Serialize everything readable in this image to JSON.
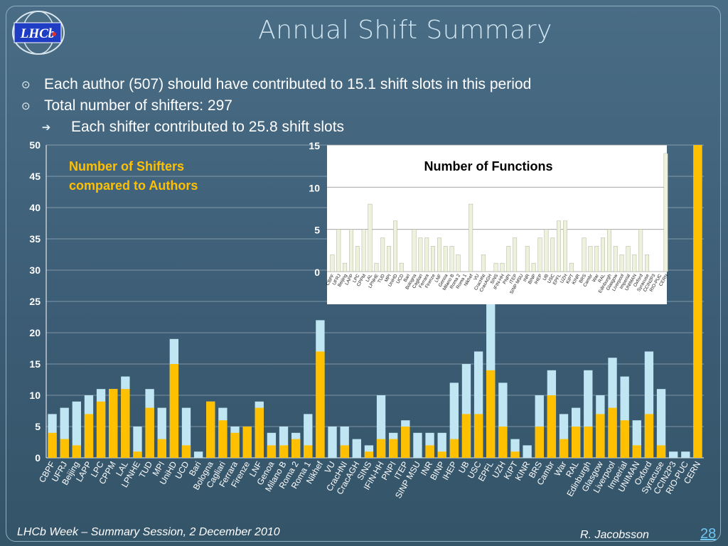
{
  "slide": {
    "title": "Annual Shift Summary",
    "bullets": [
      {
        "mark": "⊙",
        "text": "Each author (507) should have contributed to 15.1 shift slots in this period"
      },
      {
        "mark": "⊙",
        "text": "Total number of shifters: 297"
      },
      {
        "mark": "➔",
        "text": "Each shifter contributed to 25.8 shift slots"
      }
    ],
    "footer_left": "LHCb Week – Summary Session, 2 December 2010",
    "footer_author": "R. Jacobsson",
    "page_number": "28",
    "logo_text": "LHCb"
  },
  "colors": {
    "authors": "#bfe6f2",
    "shifters": "#ffc000",
    "functions": "#eef2dc",
    "background": "#3d5f78"
  },
  "chart_data": [
    {
      "type": "bar",
      "title": "Number of Shifters compared to Authors",
      "ylim": [
        0,
        50
      ],
      "yticks": [
        0,
        5,
        10,
        15,
        20,
        25,
        30,
        35,
        40,
        45,
        50
      ],
      "categories": [
        "CBPF",
        "UFRJ",
        "Beijing",
        "LAPP",
        "LPC",
        "CPPM",
        "LAL",
        "LPNHE",
        "TUD",
        "MPI",
        "UniHD",
        "UCD",
        "Bari",
        "Bologna",
        "Cagliari",
        "Ferrara",
        "Firenze",
        "LNF",
        "Genoa",
        "Milano B",
        "Roma 2",
        "Roma 1",
        "Nikhef",
        "VU",
        "CracHNI",
        "CracAGH",
        "SINS",
        "IFIN-HH",
        "PNPI",
        "ITEP",
        "SINP MSU",
        "INR",
        "BINP",
        "IHEP",
        "UB",
        "USC",
        "EPFL",
        "UZH",
        "KIPT",
        "KINR",
        "BRS",
        "Cambr",
        "War",
        "RAL",
        "Edinburgh",
        "Glasgow",
        "Liverpool",
        "Imperial",
        "UNIMAN",
        "Oxford",
        "Syracuse",
        "CCIN2P3",
        "RIO-PUC",
        "CERN"
      ],
      "series": [
        {
          "name": "Authors",
          "values": [
            7,
            8,
            9,
            10,
            11,
            11,
            13,
            5,
            11,
            8,
            19,
            8,
            1,
            9,
            8,
            5,
            5,
            9,
            4,
            5,
            4,
            7,
            22,
            5,
            5,
            3,
            2,
            10,
            4,
            6,
            4,
            4,
            4,
            12,
            15,
            17,
            25,
            12,
            3,
            2,
            10,
            14,
            7,
            8,
            14,
            10,
            16,
            13,
            6,
            17,
            11,
            1,
            1,
            50
          ]
        },
        {
          "name": "Shifters",
          "values": [
            4,
            3,
            2,
            7,
            9,
            11,
            11,
            1,
            8,
            3,
            15,
            2,
            0,
            9,
            6,
            4,
            5,
            8,
            2,
            2,
            3,
            2,
            17,
            0,
            2,
            0,
            1,
            3,
            3,
            5,
            0,
            2,
            1,
            3,
            7,
            7,
            14,
            5,
            1,
            0,
            5,
            10,
            3,
            5,
            5,
            7,
            8,
            6,
            2,
            7,
            2,
            0,
            0,
            50
          ]
        }
      ]
    },
    {
      "type": "bar",
      "title": "Number of Functions",
      "ylim": [
        0,
        15
      ],
      "yticks": [
        0,
        5,
        10,
        15
      ],
      "categories": [
        "CBPF",
        "UFRJ",
        "Beijing",
        "LAPP",
        "LPC",
        "CPPM",
        "LAL",
        "LPNHE",
        "TUD",
        "MPI",
        "UniHD",
        "UCD",
        "Bari",
        "Bologna",
        "Cagliari",
        "Ferrara",
        "Firenze",
        "LNF",
        "Genoa",
        "Milano B",
        "Roma 2",
        "Roma 1",
        "Nikhef",
        "VU",
        "CracHNI",
        "CracAGH",
        "SINS",
        "IFIN-HH",
        "PNPI",
        "ITEP",
        "SINP MSU",
        "INR",
        "BINP",
        "IHEP",
        "UB",
        "USC",
        "EPFL",
        "UZH",
        "KIPT",
        "KINR",
        "BRS",
        "Cambr",
        "War",
        "RAL",
        "Edinburgh",
        "Glasgow",
        "Liverpool",
        "Imperial",
        "UNIMAN",
        "Oxford",
        "Syracuse",
        "CCIN2P3",
        "RIO-PUC",
        "CERN"
      ],
      "values": [
        2,
        5,
        1,
        5,
        3,
        5,
        8,
        1,
        4,
        3,
        6,
        1,
        0,
        5,
        4,
        4,
        3,
        4,
        3,
        3,
        2,
        0,
        8,
        0,
        2,
        0,
        1,
        1,
        3,
        4,
        0,
        3,
        1,
        4,
        5,
        4,
        6,
        6,
        1,
        0,
        4,
        3,
        3,
        4,
        5,
        3,
        2,
        3,
        2,
        5,
        2,
        0,
        0,
        14
      ]
    }
  ]
}
